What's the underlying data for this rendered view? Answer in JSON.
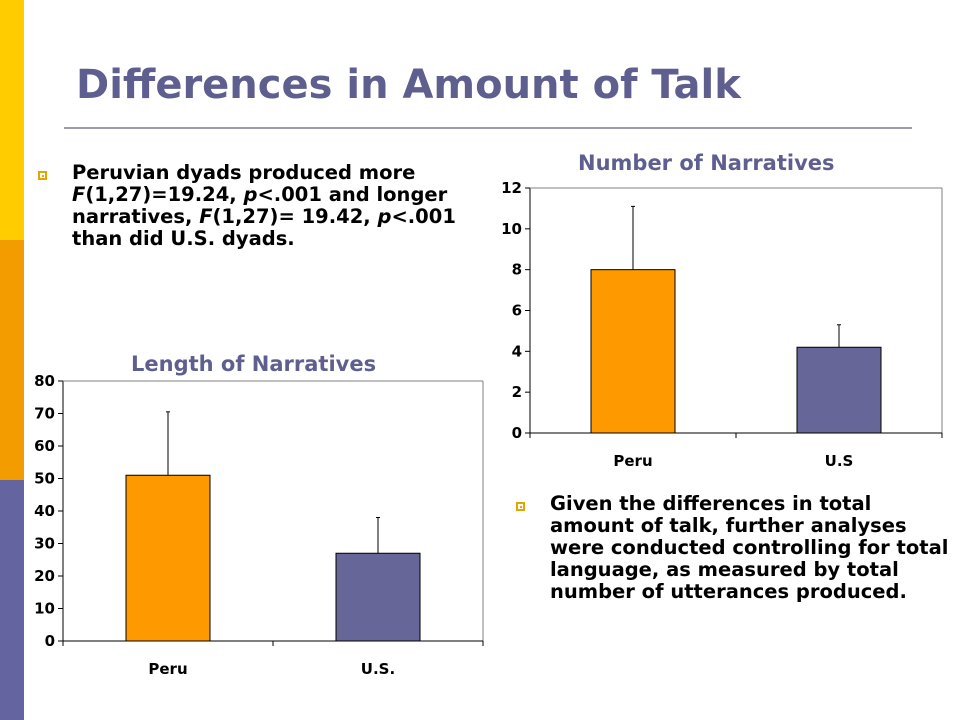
{
  "slide": {
    "title": "Differences in Amount of Talk",
    "bullets": [
      {
        "segments": [
          {
            "text": "Peruvian dyads produced more "
          },
          {
            "text": "F",
            "italic": true
          },
          {
            "text": "(1,27)=19.24, "
          },
          {
            "text": "p",
            "italic": true
          },
          {
            "text": "<.001 and longer narratives, "
          },
          {
            "text": "F",
            "italic": true
          },
          {
            "text": "(1,27)= 19.42, "
          },
          {
            "text": "p",
            "italic": true
          },
          {
            "text": "<.001 than did U.S. dyads."
          }
        ]
      },
      {
        "segments": [
          {
            "text": "Given the differences in total amount of talk, further analyses were conducted controlling for total language, as measured by total number of utterances produced."
          }
        ]
      }
    ],
    "colors": {
      "title": "#5f5f8f",
      "accent_yellow": "#ffcc00",
      "accent_orange": "#f29c00",
      "accent_slate": "#6464a0",
      "bullet_marker": "#e8a500"
    }
  },
  "chart_data": [
    {
      "type": "bar",
      "title": "Number of Narratives",
      "categories": [
        "Peru",
        "U.S"
      ],
      "values": [
        8,
        4.2
      ],
      "error_upper": [
        11.1,
        5.3
      ],
      "colors": [
        "#ff9900",
        "#666699"
      ],
      "ylim": [
        0,
        12
      ],
      "yticks": [
        0,
        2,
        4,
        6,
        8,
        10,
        12
      ],
      "xlabel": "",
      "ylabel": "",
      "grid": false
    },
    {
      "type": "bar",
      "title": "Length of Narratives",
      "categories": [
        "Peru",
        "U.S."
      ],
      "values": [
        51,
        27
      ],
      "error_upper": [
        70.5,
        38
      ],
      "colors": [
        "#ff9900",
        "#666699"
      ],
      "ylim": [
        0,
        80
      ],
      "yticks": [
        0,
        10,
        20,
        30,
        40,
        50,
        60,
        70,
        80
      ],
      "xlabel": "",
      "ylabel": "",
      "grid": false
    }
  ]
}
